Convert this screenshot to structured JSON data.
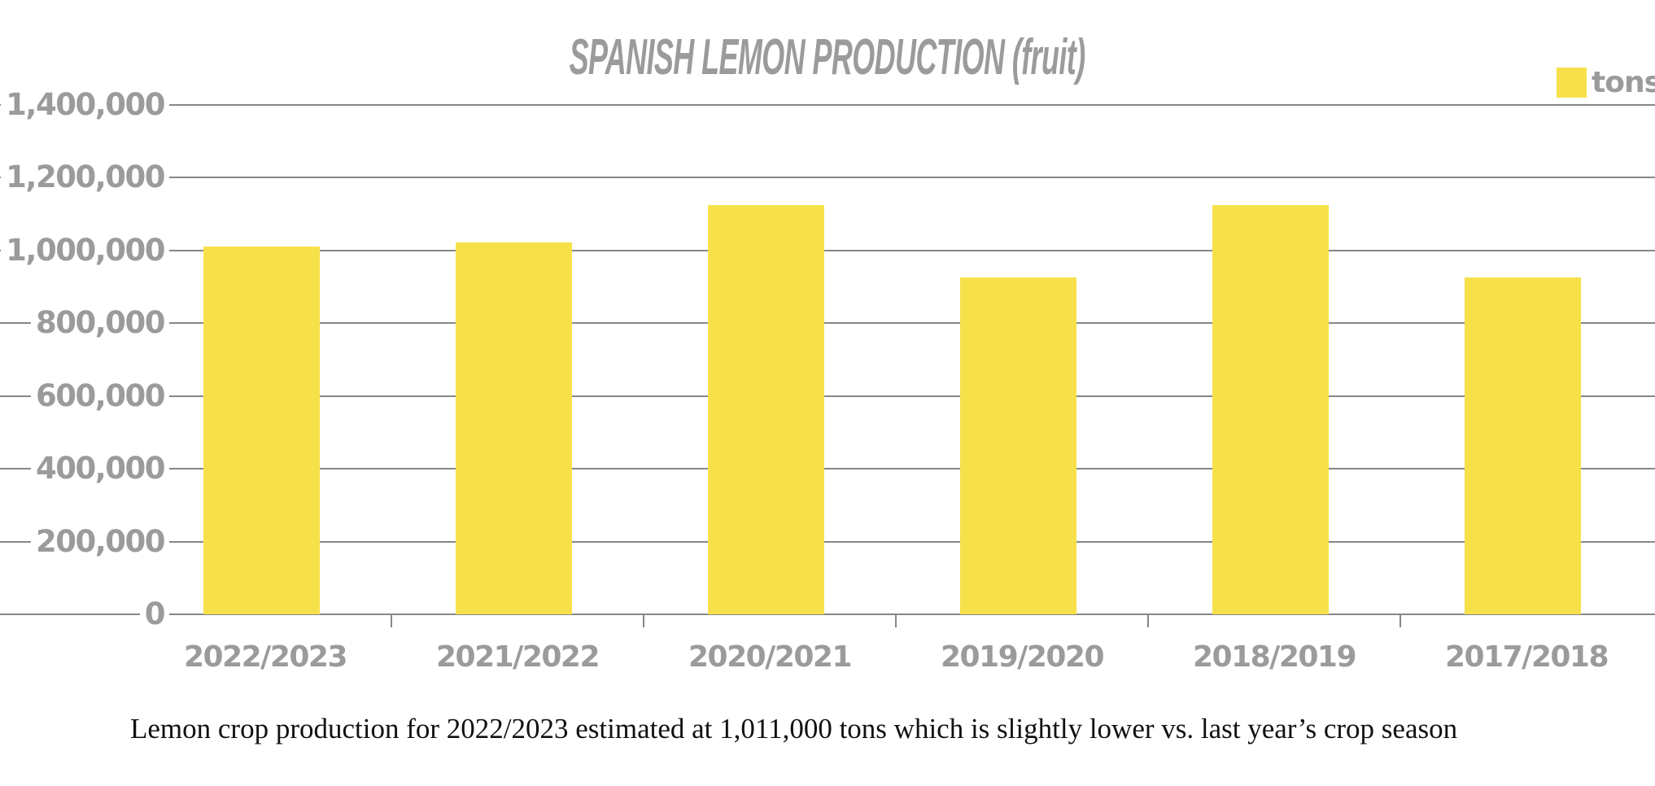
{
  "chart_data": {
    "type": "bar",
    "title": "SPANISH LEMON PRODUCTION (fruit)",
    "xlabel": "",
    "ylabel": "",
    "categories": [
      "2022/2023",
      "2021/2022",
      "2020/2021",
      "2019/2020",
      "2018/2019",
      "2017/2018"
    ],
    "series": [
      {
        "name": "tons",
        "color": "#f6e14a",
        "values": [
          1011000,
          1022000,
          1125000,
          926000,
          1125000,
          926000
        ]
      }
    ],
    "ylim": [
      0,
      1400000
    ],
    "yticks": [
      0,
      200000,
      400000,
      600000,
      800000,
      1000000,
      1200000,
      1400000
    ],
    "ytick_labels": [
      "0",
      "200,000",
      "400,000",
      "600,000",
      "800,000",
      "1,000,000",
      "1,200,000",
      "1,400,000"
    ],
    "grid": true,
    "legend_position": "top-right",
    "caption": "Lemon crop production for 2022/2023 estimated at 1,011,000 tons which is slightly lower vs. last year’s crop season"
  },
  "title": "SPANISH LEMON PRODUCTION (fruit)",
  "legend": {
    "label": "tons",
    "color": "#f6e14a"
  },
  "caption": "Lemon crop production for 2022/2023 estimated at 1,011,000 tons which is slightly lower vs. last year’s crop season",
  "colors": {
    "bar": "#f6e14a",
    "text": "#9b9b9b",
    "grid": "#878787"
  }
}
